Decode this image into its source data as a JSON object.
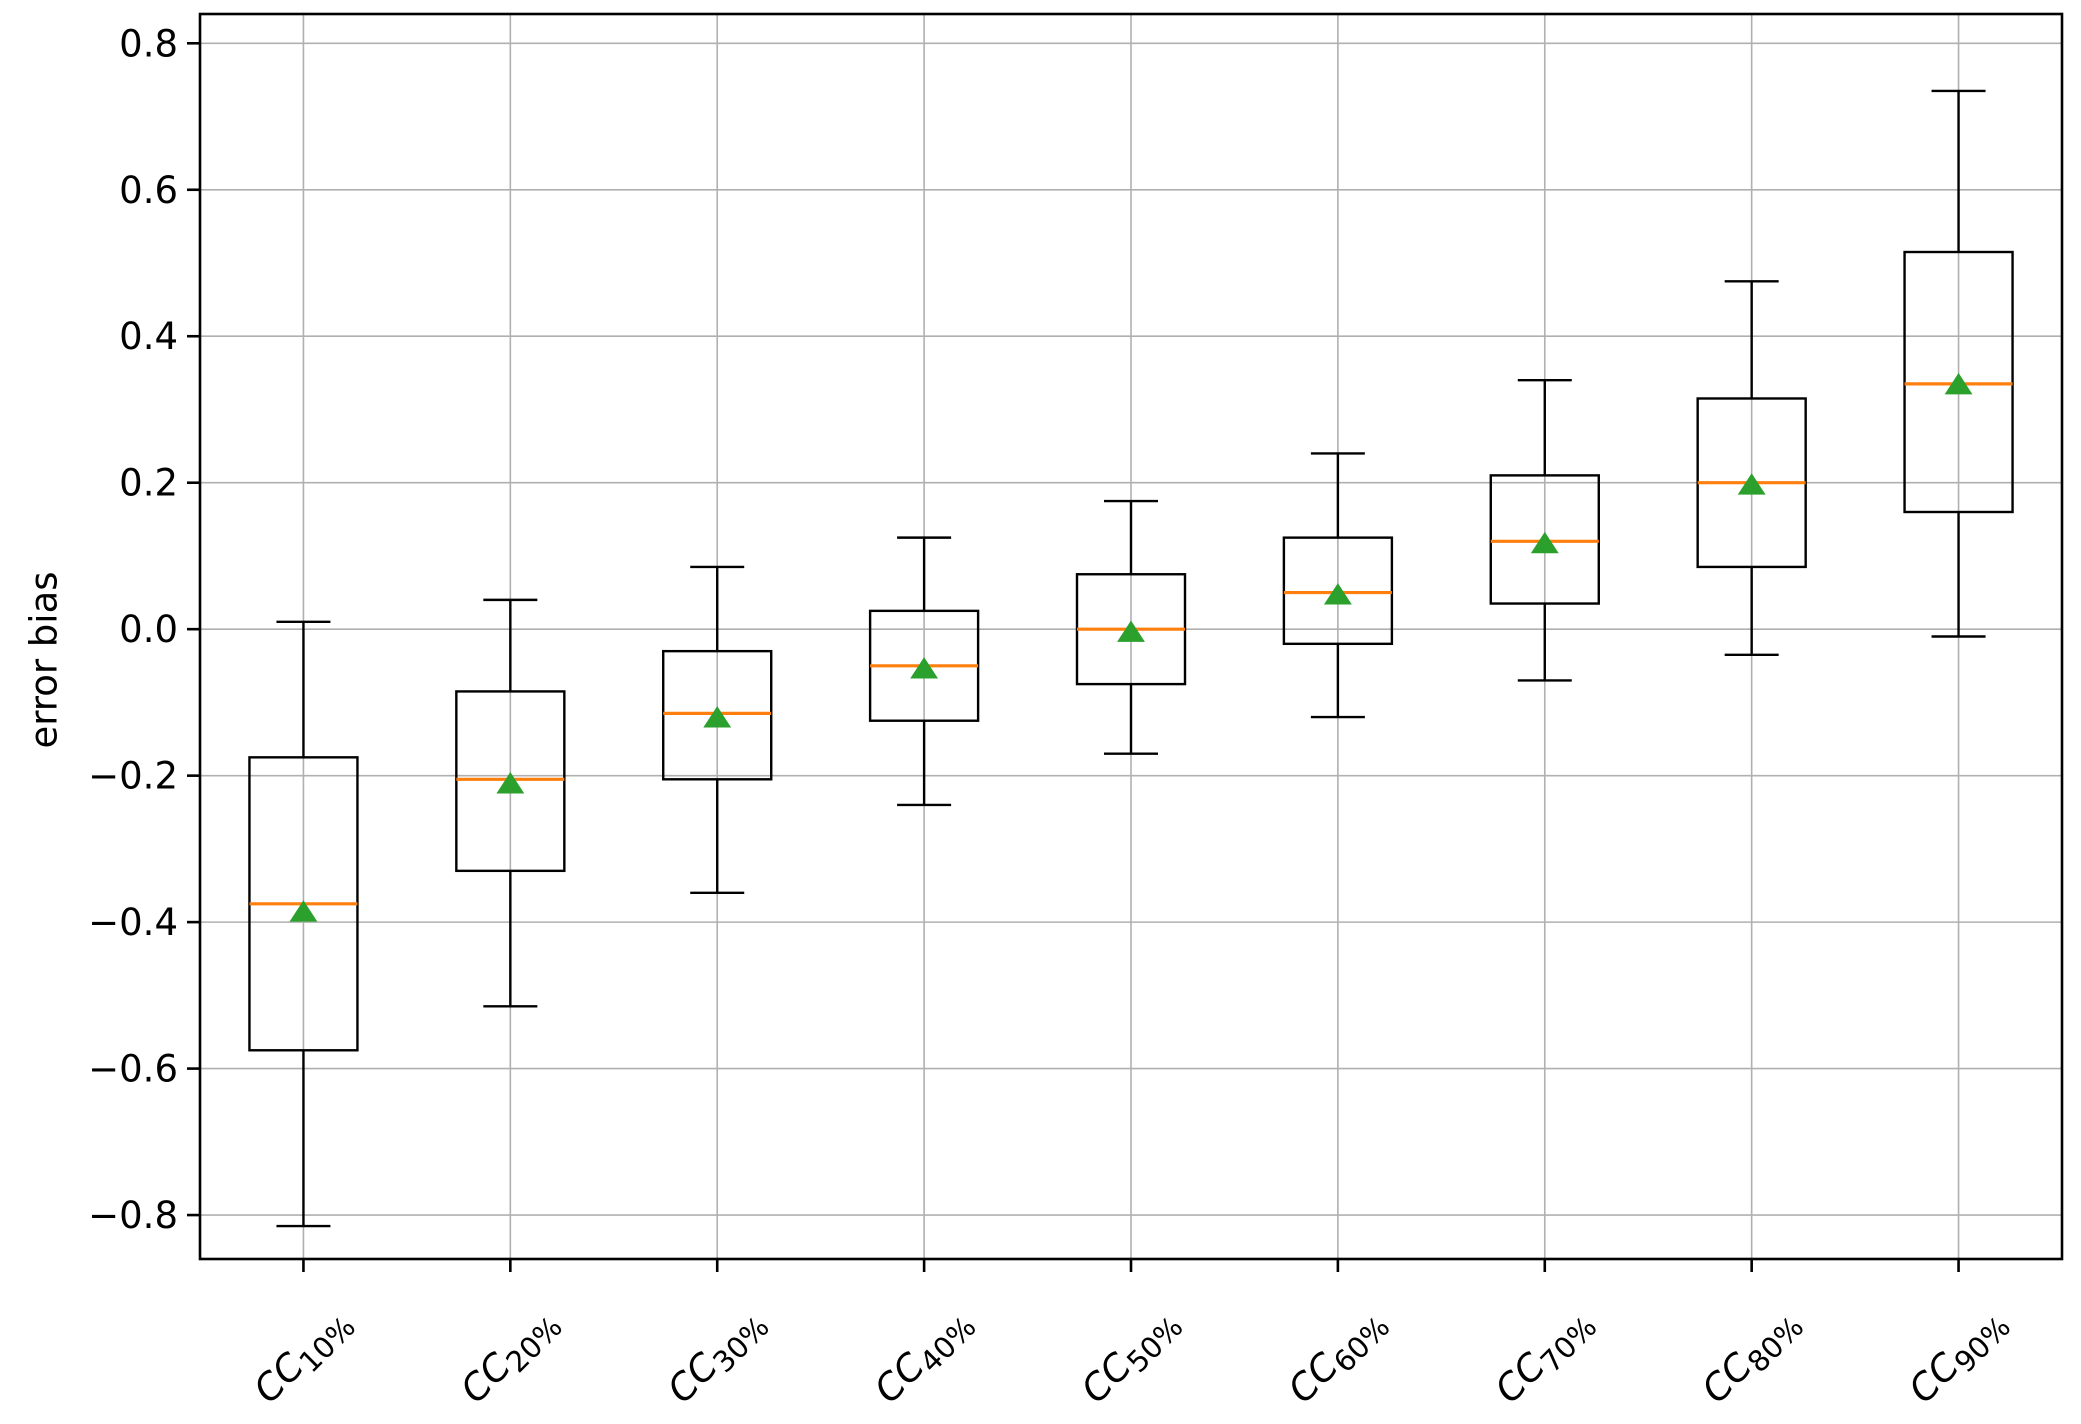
{
  "chart_data": {
    "type": "box",
    "title": "",
    "xlabel": "",
    "ylabel": "error bias",
    "ylim": [
      -0.86,
      0.84
    ],
    "yticks": [
      0.8,
      0.6,
      0.4,
      0.2,
      0.0,
      -0.2,
      -0.4,
      -0.6,
      -0.8
    ],
    "grid": true,
    "legend": "none",
    "categories": [
      {
        "base": "CC",
        "sub": "10%"
      },
      {
        "base": "CC",
        "sub": "20%"
      },
      {
        "base": "CC",
        "sub": "30%"
      },
      {
        "base": "CC",
        "sub": "40%"
      },
      {
        "base": "CC",
        "sub": "50%"
      },
      {
        "base": "CC",
        "sub": "60%"
      },
      {
        "base": "CC",
        "sub": "70%"
      },
      {
        "base": "CC",
        "sub": "80%"
      },
      {
        "base": "CC",
        "sub": "90%"
      }
    ],
    "boxes": [
      {
        "label": "CC 10%",
        "whisker_low": -0.815,
        "q1": -0.575,
        "median": -0.375,
        "q3": -0.175,
        "whisker_high": 0.01,
        "mean": -0.385
      },
      {
        "label": "CC 20%",
        "whisker_low": -0.515,
        "q1": -0.33,
        "median": -0.205,
        "q3": -0.085,
        "whisker_high": 0.04,
        "mean": -0.21
      },
      {
        "label": "CC 30%",
        "whisker_low": -0.36,
        "q1": -0.205,
        "median": -0.115,
        "q3": -0.03,
        "whisker_high": 0.085,
        "mean": -0.12
      },
      {
        "label": "CC 40%",
        "whisker_low": -0.24,
        "q1": -0.125,
        "median": -0.05,
        "q3": 0.025,
        "whisker_high": 0.125,
        "mean": -0.053
      },
      {
        "label": "CC 50%",
        "whisker_low": -0.17,
        "q1": -0.075,
        "median": 0.0,
        "q3": 0.075,
        "whisker_high": 0.175,
        "mean": -0.003
      },
      {
        "label": "CC 60%",
        "whisker_low": -0.12,
        "q1": -0.02,
        "median": 0.05,
        "q3": 0.125,
        "whisker_high": 0.24,
        "mean": 0.048
      },
      {
        "label": "CC 70%",
        "whisker_low": -0.07,
        "q1": 0.035,
        "median": 0.12,
        "q3": 0.21,
        "whisker_high": 0.34,
        "mean": 0.118
      },
      {
        "label": "CC 80%",
        "whisker_low": -0.035,
        "q1": 0.085,
        "median": 0.2,
        "q3": 0.315,
        "whisker_high": 0.475,
        "mean": 0.198
      },
      {
        "label": "CC 90%",
        "whisker_low": -0.01,
        "q1": 0.16,
        "median": 0.335,
        "q3": 0.515,
        "whisker_high": 0.735,
        "mean": 0.335
      }
    ],
    "colors": {
      "box_edge": "#000000",
      "median": "#ff7f0e",
      "mean_marker": "#2ca02c",
      "grid": "#b0b0b0",
      "axis": "#000000",
      "background": "#ffffff"
    }
  }
}
